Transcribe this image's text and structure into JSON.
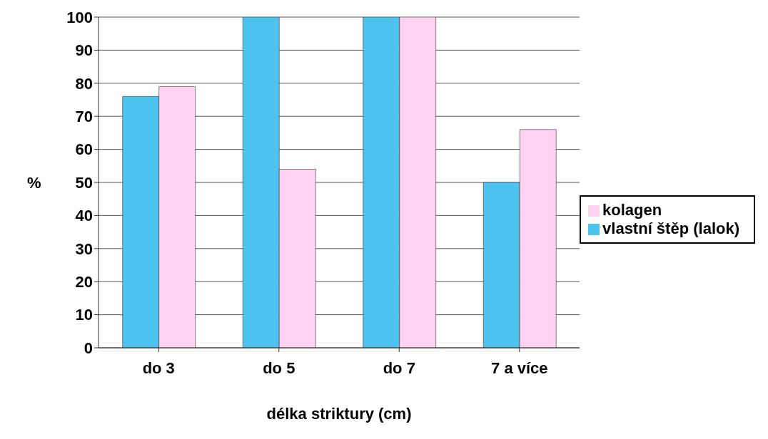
{
  "chart_data": {
    "type": "bar",
    "xlabel": "délka striktury (cm)",
    "ylabel": "%",
    "categories": [
      "do 3",
      "do 5",
      "do 7",
      "7 a více"
    ],
    "series": [
      {
        "name": "vlastní štěp (lalok)",
        "color": "#4fc3ef",
        "values": [
          76,
          100,
          100,
          50
        ]
      },
      {
        "name": "kolagen",
        "color": "#ffd2f2",
        "values": [
          79,
          54,
          100,
          66
        ]
      }
    ],
    "ylim": [
      0,
      100
    ],
    "yticks": [
      0,
      10,
      20,
      30,
      40,
      50,
      60,
      70,
      80,
      90,
      100
    ],
    "grid": "y",
    "legend": "right"
  }
}
